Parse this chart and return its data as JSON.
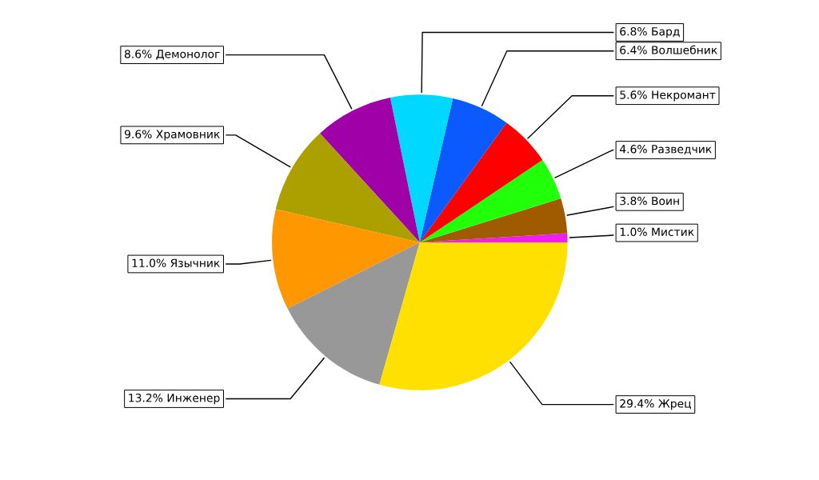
{
  "chart_data": {
    "type": "pie",
    "categories": [
      "Мистик",
      "Воин",
      "Разведчик",
      "Некромант",
      "Волшебник",
      "Бард",
      "Демонолог",
      "Храмовник",
      "Язычник",
      "Инженер",
      "Жрец"
    ],
    "values": [
      1.0,
      3.8,
      4.6,
      5.6,
      6.4,
      6.8,
      8.6,
      9.6,
      11.0,
      13.2,
      29.4
    ],
    "colors": [
      "#f01ef0",
      "#a05a00",
      "#22ff0a",
      "#ff0000",
      "#0a5aff",
      "#00d8ff",
      "#a000a8",
      "#aba000",
      "#ff9800",
      "#989898",
      "#ffe000"
    ],
    "value_labels": [
      "1.0%",
      "3.8%",
      "4.6%",
      "5.6%",
      "6.4%",
      "6.8%",
      "8.6%",
      "9.6%",
      "11.0%",
      "13.2%",
      "29.4%"
    ]
  }
}
